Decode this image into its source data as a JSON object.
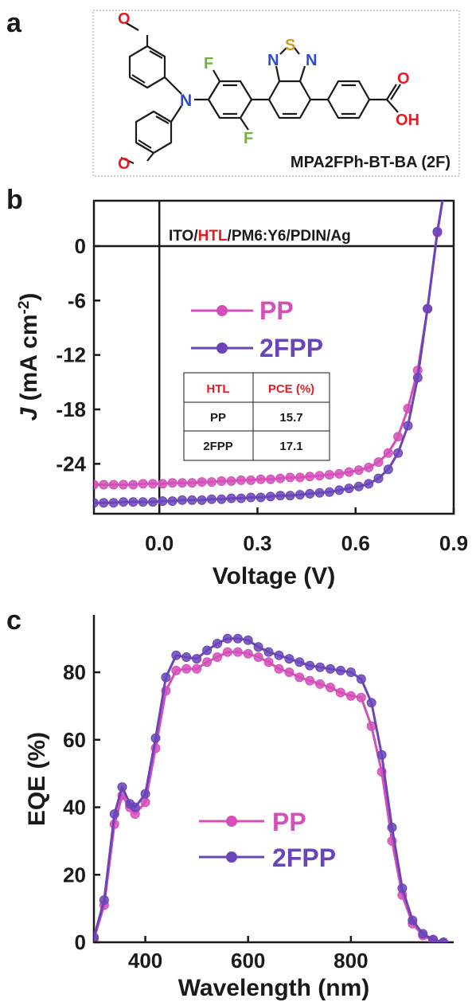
{
  "panels": {
    "a": {
      "label": "a"
    },
    "b": {
      "label": "b"
    },
    "c": {
      "label": "c"
    }
  },
  "molecule": {
    "name": "MPA2FPh-BT-BA (2F)",
    "atoms": {
      "N": "N",
      "S": "S",
      "F": "F",
      "O": "O",
      "OH": "OH"
    },
    "colors": {
      "N": "#2b4bd6",
      "S": "#c99a1c",
      "F": "#6cb33f",
      "O": "#e31b23"
    }
  },
  "colors": {
    "PP": "#d44fb8",
    "2FPP": "#6a45b8",
    "accent": "#e31b23",
    "axis": "#1a1a1a"
  },
  "chart_data": [
    {
      "type": "line",
      "panel": "b",
      "xlabel": "Voltage (V)",
      "ylabel": "J (mA cm-2)",
      "ylabel_parts": {
        "italic": "J",
        "rest": " (mA cm",
        "sup": "-2",
        "close": ")"
      },
      "xlim": [
        -0.2,
        0.9
      ],
      "ylim": [
        -29.5,
        5
      ],
      "x_ticks": [
        "0.0",
        "0.3",
        "0.6",
        "0.9"
      ],
      "y_ticks": [
        "0",
        "-6",
        "-12",
        "-18",
        "-24"
      ],
      "device_stack": {
        "pre": "ITO/",
        "highlight": "HTL",
        "post": "/PM6:Y6/PDIN/Ag"
      },
      "legend": [
        "PP",
        "2FPP"
      ],
      "table": {
        "headers": [
          "HTL",
          "PCE (%)"
        ],
        "rows": [
          [
            "PP",
            "15.7"
          ],
          [
            "2FPP",
            "17.1"
          ]
        ]
      },
      "series": [
        {
          "name": "PP",
          "x": [
            -0.2,
            -0.17,
            -0.14,
            -0.11,
            -0.08,
            -0.05,
            -0.02,
            0.01,
            0.04,
            0.07,
            0.1,
            0.13,
            0.16,
            0.19,
            0.22,
            0.25,
            0.28,
            0.31,
            0.34,
            0.37,
            0.4,
            0.43,
            0.46,
            0.49,
            0.52,
            0.55,
            0.58,
            0.61,
            0.64,
            0.67,
            0.7,
            0.73,
            0.76,
            0.79,
            0.82,
            0.85,
            0.87
          ],
          "y": [
            -26.3,
            -26.3,
            -26.3,
            -26.3,
            -26.3,
            -26.2,
            -26.2,
            -26.2,
            -26.1,
            -26.1,
            -26.1,
            -26.0,
            -26.0,
            -25.9,
            -25.9,
            -25.8,
            -25.8,
            -25.7,
            -25.7,
            -25.6,
            -25.5,
            -25.5,
            -25.4,
            -25.3,
            -25.2,
            -25.1,
            -24.9,
            -24.7,
            -24.4,
            -23.8,
            -22.8,
            -21.0,
            -17.9,
            -13.7,
            -6.9,
            1.5,
            6.0
          ]
        },
        {
          "name": "2FPP",
          "x": [
            -0.2,
            -0.17,
            -0.14,
            -0.11,
            -0.08,
            -0.05,
            -0.02,
            0.01,
            0.04,
            0.07,
            0.1,
            0.13,
            0.16,
            0.19,
            0.22,
            0.25,
            0.28,
            0.31,
            0.34,
            0.37,
            0.4,
            0.43,
            0.46,
            0.49,
            0.52,
            0.55,
            0.58,
            0.61,
            0.64,
            0.67,
            0.7,
            0.73,
            0.76,
            0.79,
            0.82,
            0.85,
            0.87
          ],
          "y": [
            -28.3,
            -28.3,
            -28.3,
            -28.2,
            -28.2,
            -28.2,
            -28.2,
            -28.1,
            -28.1,
            -28.0,
            -28.0,
            -28.0,
            -27.9,
            -27.9,
            -27.8,
            -27.8,
            -27.7,
            -27.7,
            -27.6,
            -27.5,
            -27.5,
            -27.4,
            -27.3,
            -27.2,
            -27.1,
            -26.9,
            -26.7,
            -26.5,
            -26.2,
            -25.6,
            -24.6,
            -22.8,
            -19.8,
            -14.5,
            -6.9,
            1.6,
            6.0
          ]
        }
      ]
    },
    {
      "type": "line",
      "panel": "c",
      "xlabel": "Wavelength (nm)",
      "ylabel": "EQE (%)",
      "xlim": [
        300,
        1000
      ],
      "ylim": [
        0,
        97
      ],
      "x_ticks": [
        "400",
        "600",
        "800"
      ],
      "y_ticks": [
        "0",
        "20",
        "40",
        "60",
        "80"
      ],
      "legend": [
        "PP",
        "2FPP"
      ],
      "series": [
        {
          "name": "PP",
          "x": [
            300,
            320,
            340,
            355,
            370,
            380,
            400,
            420,
            440,
            460,
            480,
            500,
            520,
            540,
            560,
            580,
            600,
            620,
            640,
            660,
            680,
            700,
            720,
            740,
            760,
            780,
            800,
            820,
            840,
            860,
            880,
            900,
            920,
            940,
            960,
            980
          ],
          "y": [
            1.0,
            11.0,
            35.0,
            43.5,
            40.0,
            38.0,
            41.5,
            57.5,
            74.5,
            80.5,
            81.0,
            81.0,
            83.0,
            84.5,
            86.0,
            86.0,
            85.5,
            84.5,
            83.0,
            81.0,
            80.0,
            78.5,
            77.5,
            76.5,
            75.5,
            74.0,
            73.0,
            72.5,
            64.0,
            50.5,
            30.0,
            14.0,
            5.5,
            2.0,
            0.5,
            0.0
          ]
        },
        {
          "name": "2FPP",
          "x": [
            300,
            320,
            340,
            355,
            370,
            380,
            400,
            420,
            440,
            460,
            480,
            500,
            520,
            540,
            560,
            580,
            600,
            620,
            640,
            660,
            680,
            700,
            720,
            740,
            760,
            780,
            800,
            820,
            840,
            860,
            880,
            900,
            920,
            940,
            960,
            980
          ],
          "y": [
            1.5,
            12.5,
            38.0,
            46.0,
            41.0,
            40.0,
            44.0,
            60.5,
            78.5,
            85.0,
            84.5,
            84.0,
            86.5,
            88.5,
            90.0,
            90.0,
            89.5,
            87.5,
            86.0,
            85.0,
            84.0,
            83.0,
            82.0,
            81.5,
            81.0,
            80.5,
            80.0,
            78.0,
            71.0,
            55.5,
            34.0,
            16.0,
            6.5,
            2.5,
            0.8,
            0.0
          ]
        }
      ]
    }
  ]
}
